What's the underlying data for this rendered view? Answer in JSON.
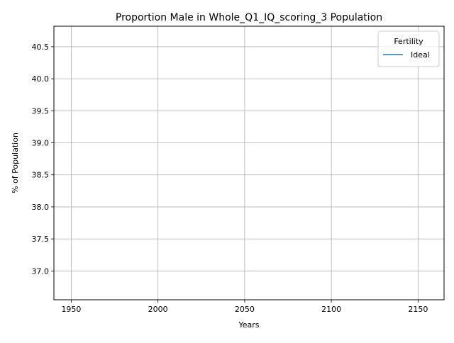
{
  "chart_data": {
    "type": "line",
    "title": "Proportion Male in Whole_Q1_IQ_scoring_3 Population",
    "xlabel": "Years",
    "ylabel": "% of Population",
    "xlim": [
      1940,
      2165
    ],
    "ylim": [
      36.55,
      40.82
    ],
    "xticks": [
      1950,
      2000,
      2050,
      2100,
      2150
    ],
    "yticks": [
      37.0,
      37.5,
      38.0,
      38.5,
      39.0,
      39.5,
      40.0,
      40.5
    ],
    "ytick_labels": [
      "37.0",
      "37.5",
      "38.0",
      "38.5",
      "39.0",
      "39.5",
      "40.0",
      "40.5"
    ],
    "grid": true,
    "legend": {
      "title": "Fertility",
      "placement": "top-right",
      "entries": [
        {
          "label": "Ideal",
          "color": "#1f77b4"
        }
      ]
    },
    "series": [
      {
        "name": "Ideal",
        "color": "#1f77b4",
        "x": [],
        "y": []
      }
    ]
  }
}
